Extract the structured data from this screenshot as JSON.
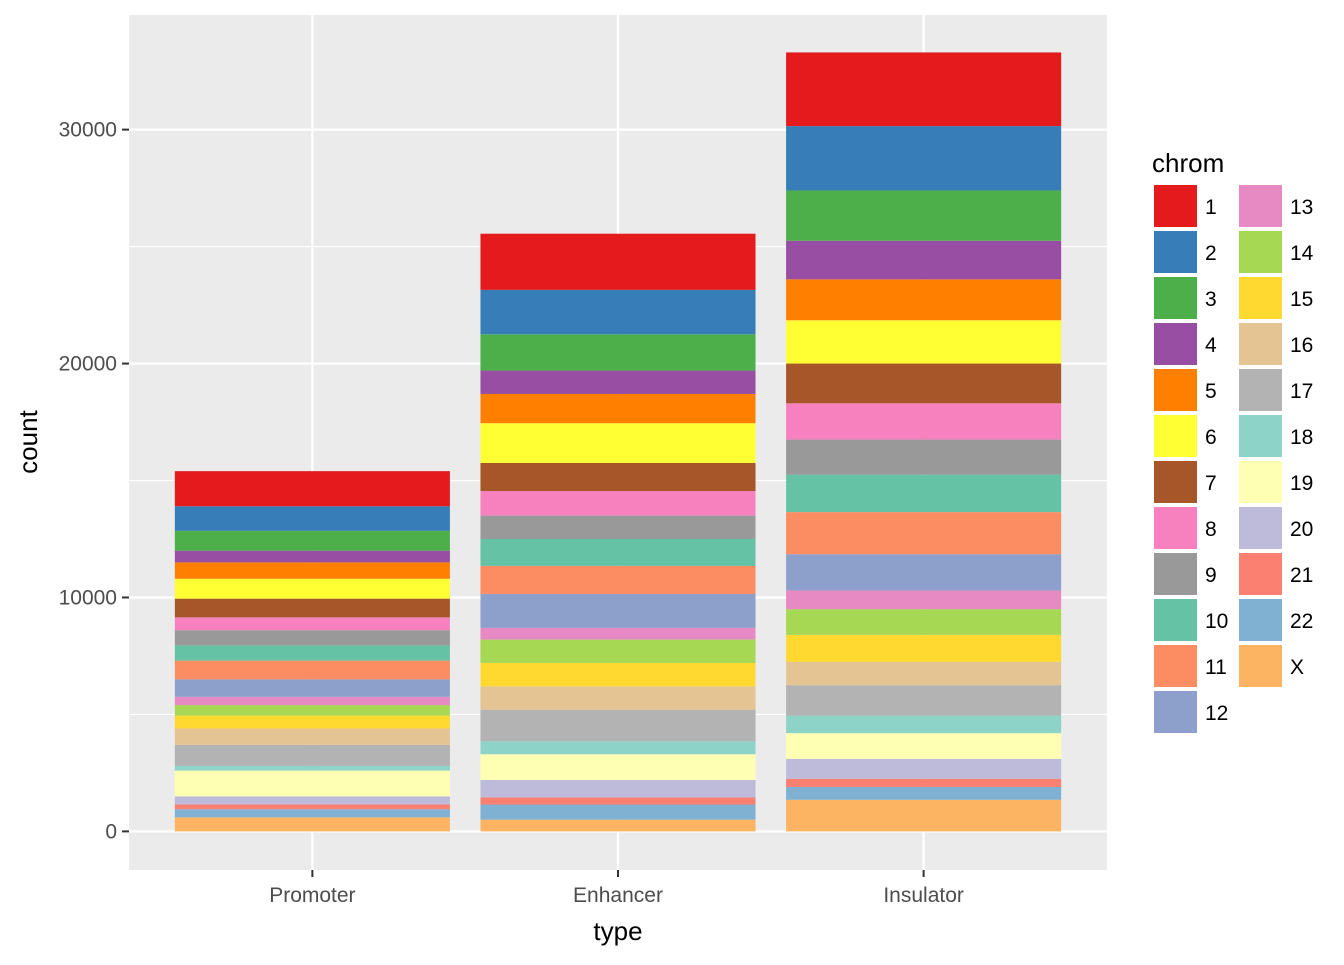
{
  "chart_data": {
    "type": "bar",
    "stacked": true,
    "xlabel": "type",
    "ylabel": "count",
    "categories": [
      "Promoter",
      "Enhancer",
      "Insulator"
    ],
    "ylim": [
      -1650,
      34900
    ],
    "yticks": [
      0,
      10000,
      20000,
      30000
    ],
    "grid": true,
    "legend": {
      "title": "chrom",
      "position": "right",
      "columns": 2
    },
    "series": [
      {
        "name": "X",
        "color": "#FDB462",
        "values": [
          600,
          500,
          1350
        ]
      },
      {
        "name": "22",
        "color": "#80B1D3",
        "values": [
          350,
          650,
          550
        ]
      },
      {
        "name": "21",
        "color": "#FB8072",
        "values": [
          200,
          300,
          350
        ]
      },
      {
        "name": "20",
        "color": "#BEBADA",
        "values": [
          350,
          750,
          850
        ]
      },
      {
        "name": "19",
        "color": "#FFFFB3",
        "values": [
          1100,
          1100,
          1100
        ]
      },
      {
        "name": "18",
        "color": "#8DD3C7",
        "values": [
          200,
          550,
          750
        ]
      },
      {
        "name": "17",
        "color": "#B3B3B3",
        "values": [
          900,
          1350,
          1300
        ]
      },
      {
        "name": "16",
        "color": "#E5C494",
        "values": [
          700,
          1000,
          1000
        ]
      },
      {
        "name": "15",
        "color": "#FFD92F",
        "values": [
          550,
          1000,
          1150
        ]
      },
      {
        "name": "14",
        "color": "#A6D854",
        "values": [
          450,
          1000,
          1100
        ]
      },
      {
        "name": "13",
        "color": "#E78AC3",
        "values": [
          350,
          500,
          800
        ]
      },
      {
        "name": "12",
        "color": "#8DA0CB",
        "values": [
          750,
          1450,
          1550
        ]
      },
      {
        "name": "11",
        "color": "#FC8D62",
        "values": [
          800,
          1200,
          1800
        ]
      },
      {
        "name": "10",
        "color": "#66C2A5",
        "values": [
          650,
          1150,
          1600
        ]
      },
      {
        "name": "9",
        "color": "#999999",
        "values": [
          650,
          1000,
          1500
        ]
      },
      {
        "name": "8",
        "color": "#F781BF",
        "values": [
          550,
          1050,
          1550
        ]
      },
      {
        "name": "7",
        "color": "#A65628",
        "values": [
          800,
          1200,
          1700
        ]
      },
      {
        "name": "6",
        "color": "#FFFF33",
        "values": [
          850,
          1700,
          1850
        ]
      },
      {
        "name": "5",
        "color": "#FF7F00",
        "values": [
          700,
          1250,
          1750
        ]
      },
      {
        "name": "4",
        "color": "#984EA3",
        "values": [
          500,
          1000,
          1650
        ]
      },
      {
        "name": "3",
        "color": "#4DAF4A",
        "values": [
          850,
          1550,
          2150
        ]
      },
      {
        "name": "2",
        "color": "#377EB8",
        "values": [
          1050,
          1900,
          2750
        ]
      },
      {
        "name": "1",
        "color": "#E41A1C",
        "values": [
          1500,
          2400,
          3150
        ]
      }
    ],
    "legend_order": [
      "1",
      "2",
      "3",
      "4",
      "5",
      "6",
      "7",
      "8",
      "9",
      "10",
      "11",
      "12",
      "13",
      "14",
      "15",
      "16",
      "17",
      "18",
      "19",
      "20",
      "21",
      "22",
      "X"
    ]
  }
}
